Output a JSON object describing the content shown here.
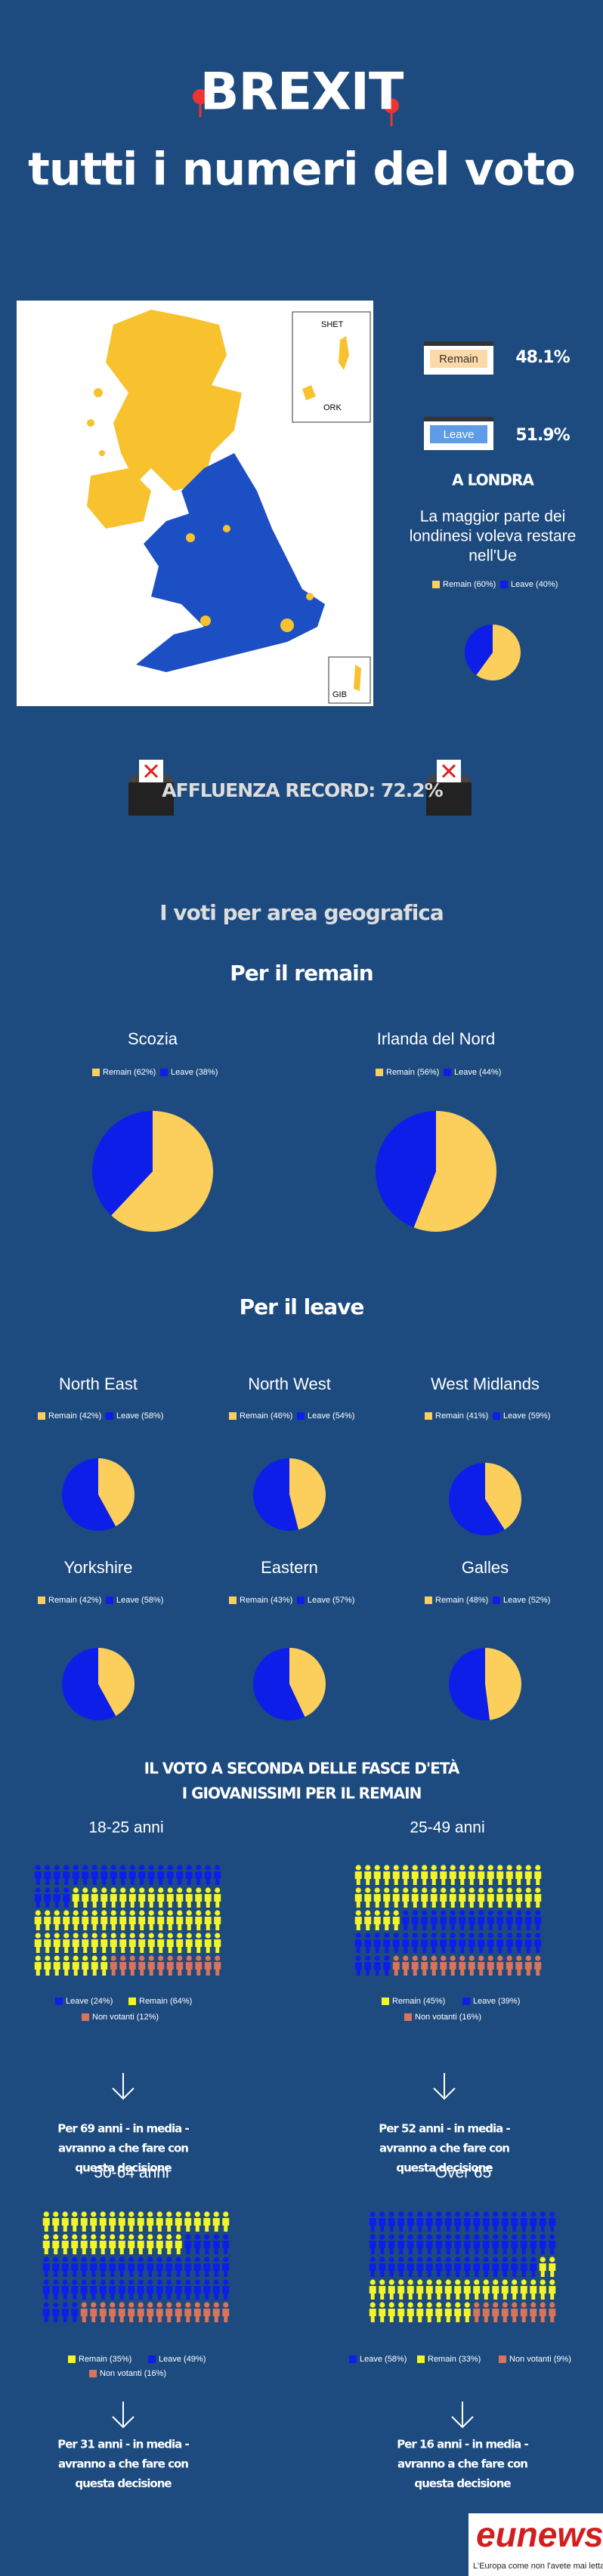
{
  "header": {
    "title": "BREXIT",
    "subtitle": "tutti i numeri del voto"
  },
  "map": {
    "labels": [
      "SHET",
      "ORK",
      "GIB"
    ]
  },
  "results": [
    {
      "label": "Remain",
      "value": "48.1%"
    },
    {
      "label": "Leave",
      "value": "51.9%"
    }
  ],
  "london": {
    "title": "A LONDRA",
    "text": [
      "La maggior parte dei",
      "londinesi voleva restare",
      "nell'Ue"
    ]
  },
  "turnout": "AFFLUENZA RECORD: 72.2%",
  "regions": {
    "title": "I voti per area geografica",
    "remain_title": "Per il remain",
    "leave_title": "Per il leave"
  },
  "ages_title": [
    "IL VOTO A SECONDA DELLE FASCE D'ETÀ",
    "I GIOVANISSIMI PER IL REMAIN"
  ],
  "chart_data": [
    {
      "type": "pie",
      "categories": [
        "Remain",
        "Leave"
      ],
      "values": [
        60,
        40
      ],
      "legend": [
        "Remain (60%)",
        "Leave (40%)"
      ],
      "colors": [
        "#fccf5c",
        "#0c1ee8"
      ]
    },
    {
      "type": "pie",
      "title": "Scozia",
      "categories": [
        "Remain",
        "Leave"
      ],
      "values": [
        62,
        38
      ],
      "legend": [
        "Remain (62%)",
        "Leave (38%)"
      ],
      "colors": [
        "#fccf5c",
        "#0c1ee8"
      ]
    },
    {
      "type": "pie",
      "title": "Irlanda del Nord",
      "categories": [
        "Remain",
        "Leave"
      ],
      "values": [
        56,
        44
      ],
      "legend": [
        "Remain (56%)",
        "Leave (44%)"
      ],
      "colors": [
        "#fccf5c",
        "#0c1ee8"
      ]
    },
    {
      "type": "pie",
      "title": "North East",
      "categories": [
        "Remain",
        "Leave"
      ],
      "values": [
        42,
        58
      ],
      "legend": [
        "Remain (42%)",
        "Leave (58%)"
      ],
      "colors": [
        "#fccf5c",
        "#0c1ee8"
      ]
    },
    {
      "type": "pie",
      "title": "North West",
      "categories": [
        "Remain",
        "Leave"
      ],
      "values": [
        46,
        54
      ],
      "legend": [
        "Remain (46%)",
        "Leave (54%)"
      ],
      "colors": [
        "#fccf5c",
        "#0c1ee8"
      ]
    },
    {
      "type": "pie",
      "title": "West Midlands",
      "categories": [
        "Remain",
        "Leave"
      ],
      "values": [
        41,
        59
      ],
      "legend": [
        "Remain (41%)",
        "Leave (59%)"
      ],
      "colors": [
        "#fccf5c",
        "#0c1ee8"
      ]
    },
    {
      "type": "pie",
      "title": "Yorkshire",
      "categories": [
        "Remain",
        "Leave"
      ],
      "values": [
        42,
        58
      ],
      "legend": [
        "Remain (42%)",
        "Leave (58%)"
      ],
      "colors": [
        "#fccf5c",
        "#0c1ee8"
      ]
    },
    {
      "type": "pie",
      "title": "Eastern",
      "categories": [
        "Remain",
        "Leave"
      ],
      "values": [
        43,
        57
      ],
      "legend": [
        "Remain (43%)",
        "Leave (57%)"
      ],
      "colors": [
        "#fccf5c",
        "#0c1ee8"
      ]
    },
    {
      "type": "pie",
      "title": "Galles",
      "categories": [
        "Remain",
        "Leave"
      ],
      "values": [
        48,
        52
      ],
      "legend": [
        "Remain (48%)",
        "Leave (52%)"
      ],
      "colors": [
        "#fccf5c",
        "#0c1ee8"
      ]
    },
    {
      "type": "waffle",
      "title": "18-25 anni",
      "categories": [
        "Leave",
        "Remain",
        "Non votanti"
      ],
      "values": [
        24,
        64,
        12
      ],
      "legend": [
        "Leave (24%)",
        "Remain (64%)",
        "Non votanti (12%)"
      ],
      "colors": [
        "#0c1ee8",
        "#f4f42a",
        "#d9735a"
      ],
      "note": [
        "Per 69 anni - in media -",
        "avranno a che fare con",
        "questa decisione"
      ]
    },
    {
      "type": "waffle",
      "title": "25-49 anni",
      "categories": [
        "Remain",
        "Leave",
        "Non votanti"
      ],
      "values": [
        45,
        39,
        16
      ],
      "legend": [
        "Remain (45%)",
        "Leave (39%)",
        "Non votanti (16%)"
      ],
      "colors": [
        "#f4f42a",
        "#0c1ee8",
        "#d9735a"
      ],
      "note": [
        "Per 52 anni - in media -",
        "avranno a che fare con",
        "questa decisione"
      ]
    },
    {
      "type": "waffle",
      "title": "50-64 anni",
      "categories": [
        "Remain",
        "Leave",
        "Non votanti"
      ],
      "values": [
        35,
        49,
        16
      ],
      "legend": [
        "Remain (35%)",
        "Leave (49%)",
        "Non votanti (16%)"
      ],
      "colors": [
        "#f4f42a",
        "#0c1ee8",
        "#d9735a"
      ],
      "note": [
        "Per 31 anni - in media -",
        "avranno a che fare con",
        "questa decisione"
      ]
    },
    {
      "type": "waffle",
      "title": "Over 65",
      "categories": [
        "Leave",
        "Remain",
        "Non votanti"
      ],
      "values": [
        58,
        33,
        9
      ],
      "legend": [
        "Leave (58%)",
        "Remain (33%)",
        "Non votanti (9%)"
      ],
      "colors": [
        "#0c1ee8",
        "#f4f42a",
        "#d9735a"
      ],
      "note": [
        "Per 16 anni - in media -",
        "avranno a che fare con",
        "questa decisione"
      ]
    }
  ],
  "footer": {
    "logo": "eunews",
    "tagline": "L'Europa come non l'avete mai letta"
  }
}
